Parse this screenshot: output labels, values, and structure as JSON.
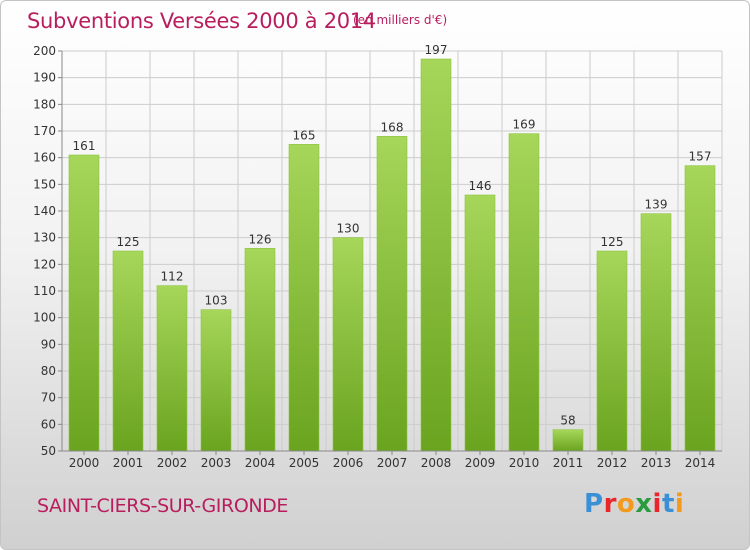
{
  "title": "Subventions Versées 2000 à 2014",
  "subtitle": "(en milliers d'€)",
  "commune": "SAINT-CIERS-SUR-GIRONDE",
  "logo": {
    "text": "Proxiti",
    "colors": [
      "#3b8fd6",
      "#e8262b",
      "#f29a1d",
      "#2a9c3f",
      "#e8262b",
      "#3b8fd6",
      "#f29a1d"
    ]
  },
  "colors": {
    "bar_light": "#a6d65a",
    "bar_dark": "#6aa41f",
    "text_accent": "#b81e5e",
    "grid": "#cccccc"
  },
  "chart_data": {
    "type": "bar",
    "categories": [
      "2000",
      "2001",
      "2002",
      "2003",
      "2004",
      "2005",
      "2006",
      "2007",
      "2008",
      "2009",
      "2010",
      "2011",
      "2012",
      "2013",
      "2014"
    ],
    "values": [
      161,
      125,
      112,
      103,
      126,
      165,
      130,
      168,
      197,
      146,
      169,
      58,
      125,
      139,
      157
    ],
    "ylim": [
      50,
      200
    ],
    "yticks": [
      50,
      60,
      70,
      80,
      90,
      100,
      110,
      120,
      130,
      140,
      150,
      160,
      170,
      180,
      190,
      200
    ],
    "grid": true,
    "data_labels": true
  }
}
